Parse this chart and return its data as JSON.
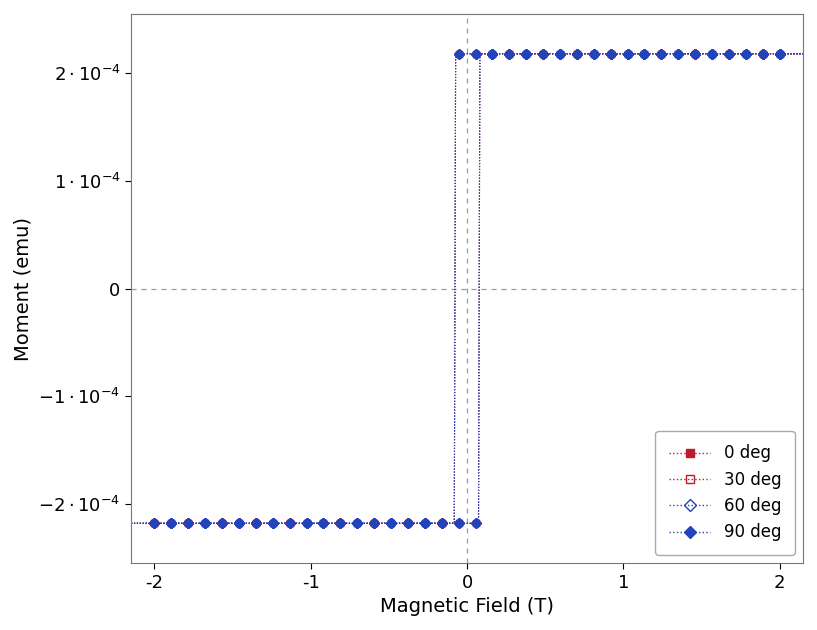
{
  "title": "",
  "xlabel": "Magnetic Field (T)",
  "ylabel": "Moment (emu)",
  "xlim": [
    -2.15,
    2.15
  ],
  "ylim": [
    -0.000255,
    0.000255
  ],
  "xticks": [
    -2,
    -1,
    0,
    1,
    2
  ],
  "series": [
    {
      "label": "0 deg",
      "color": "#c0192c",
      "marker": "s",
      "filled": true,
      "Hc": 0.08,
      "Ms": 0.000218,
      "slope": 8.0
    },
    {
      "label": "30 deg",
      "color": "#c0192c",
      "marker": "s",
      "filled": false,
      "Hc": 0.08,
      "Ms": 0.000218,
      "slope": 4.5
    },
    {
      "label": "60 deg",
      "color": "#2244bb",
      "marker": "D",
      "filled": false,
      "Hc": 0.08,
      "Ms": 0.000218,
      "slope": 3.0
    },
    {
      "label": "90 deg",
      "color": "#2244bb",
      "marker": "D",
      "filled": true,
      "Hc": 0.08,
      "Ms": 0.000218,
      "slope": 2.0
    }
  ],
  "background_color": "#ffffff",
  "grid_color": "#999999",
  "line_style": ":",
  "marker_size": 5,
  "linewidth": 0.8,
  "n_points": 38
}
